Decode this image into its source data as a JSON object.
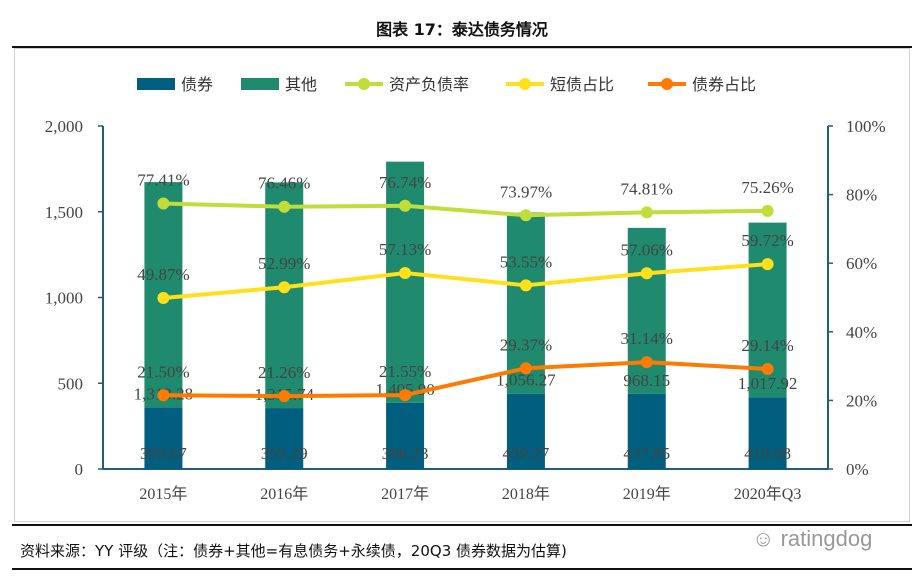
{
  "title": "图表 17：泰达债务情况",
  "source": "资料来源：YY 评级（注：债券+其他=有息债务+永续债，20Q3 债券数据为估算)",
  "watermark": "ratingdog",
  "chart_data": {
    "type": "bar+line",
    "categories": [
      "2015年",
      "2016年",
      "2017年",
      "2018年",
      "2019年",
      "2020年Q3"
    ],
    "left_axis": {
      "range": [
        0,
        2000
      ],
      "ticks": [
        "0",
        "500",
        "1,000",
        "1,500",
        "2,000"
      ]
    },
    "right_axis": {
      "range": [
        0,
        100
      ],
      "ticks": [
        "0%",
        "20%",
        "40%",
        "60%",
        "80%",
        "100%"
      ]
    },
    "legend_position": "top",
    "grid": false,
    "bars": [
      {
        "name": "债券",
        "color": "#005f7f",
        "values": [
          359.67,
          355.29,
          386.23,
          439.27,
          437.85,
          418.68
        ],
        "labels": [
          "359.67",
          "355.29",
          "386.23",
          "439.27",
          "437.85",
          "418.68"
        ]
      },
      {
        "name": "其他",
        "color": "#1f8a6e",
        "values": [
          1313.28,
          1315.74,
          1405.9,
          1056.27,
          968.15,
          1017.92
        ],
        "labels": [
          "1,313.28",
          "1,315.74",
          "1,405.90",
          "1,056.27",
          "968.15",
          "1,017.92"
        ]
      }
    ],
    "lines": [
      {
        "name": "资产负债率",
        "color": "#c0dd3a",
        "values": [
          77.41,
          76.46,
          76.74,
          73.97,
          74.81,
          75.26
        ],
        "labels": [
          "77.41%",
          "76.46%",
          "76.74%",
          "73.97%",
          "74.81%",
          "75.26%"
        ]
      },
      {
        "name": "短债占比",
        "color": "#ffe01a",
        "values": [
          49.87,
          52.99,
          57.13,
          53.55,
          57.06,
          59.72
        ],
        "labels": [
          "49.87%",
          "52.99%",
          "57.13%",
          "53.55%",
          "57.06%",
          "59.72%"
        ]
      },
      {
        "name": "债券占比",
        "color": "#ff7a00",
        "values": [
          21.5,
          21.26,
          21.55,
          29.37,
          31.14,
          29.14
        ],
        "labels": [
          "21.50%",
          "21.26%",
          "21.55%",
          "29.37%",
          "31.14%",
          "29.14%"
        ]
      }
    ]
  }
}
